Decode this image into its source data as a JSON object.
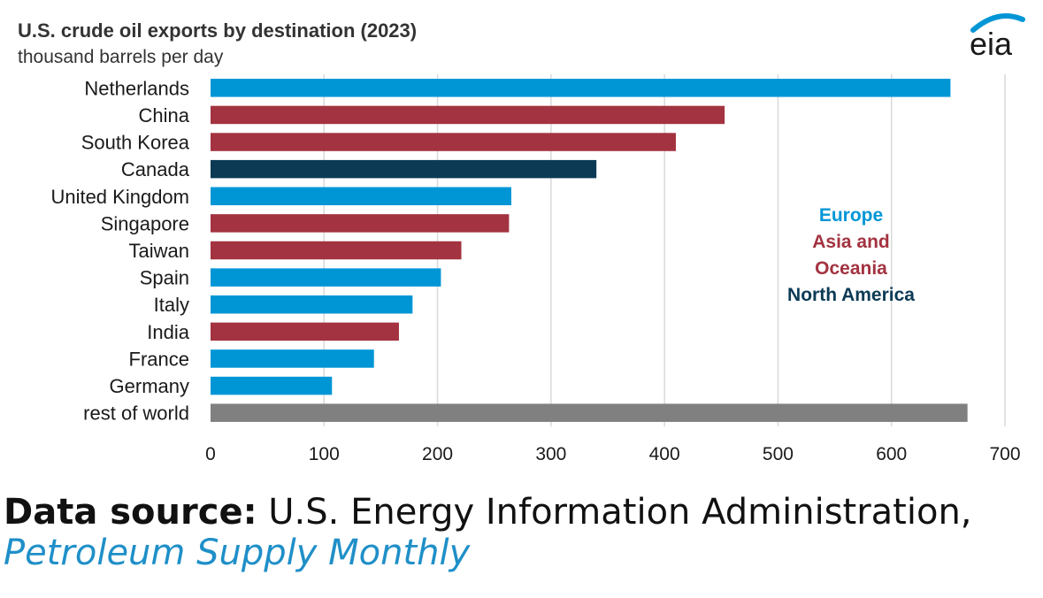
{
  "header": {
    "title": "U.S. crude oil exports by destination (2023)",
    "subtitle": "thousand barrels per day",
    "logo_text": "eia"
  },
  "colors": {
    "europe": "#0096d6",
    "asia_oceania": "#a33340",
    "north_america": "#0c3a55",
    "rest": "#808080",
    "grid": "#d9d9d9",
    "text": "#1a1a1a"
  },
  "legend": [
    {
      "label": "Europe",
      "color": "#0096d6"
    },
    {
      "label": "Asia and",
      "color": "#a33340"
    },
    {
      "label": "Oceania",
      "color": "#a33340"
    },
    {
      "label": "North America",
      "color": "#0c3a55"
    }
  ],
  "chart_data": {
    "type": "bar",
    "orientation": "horizontal",
    "title": "U.S. crude oil exports by destination (2023)",
    "subtitle": "thousand barrels per day",
    "xlim": [
      0,
      700
    ],
    "xticks": [
      0,
      100,
      200,
      300,
      400,
      500,
      600,
      700
    ],
    "grid": "vertical",
    "legend_placement": "right, inside plot",
    "categories": [
      "Netherlands",
      "China",
      "South Korea",
      "Canada",
      "United Kingdom",
      "Singapore",
      "Taiwan",
      "Spain",
      "Italy",
      "India",
      "France",
      "Germany",
      "rest of world"
    ],
    "values": [
      652,
      453,
      410,
      340,
      265,
      263,
      221,
      203,
      178,
      166,
      144,
      107,
      667
    ],
    "regions": [
      "europe",
      "asia_oceania",
      "asia_oceania",
      "north_america",
      "europe",
      "asia_oceania",
      "asia_oceania",
      "europe",
      "europe",
      "asia_oceania",
      "europe",
      "europe",
      "rest"
    ]
  },
  "footer": {
    "source_label": "Data source:",
    "source_text": " U.S. Energy Information Administration, ",
    "source_publication": "Petroleum Supply Monthly"
  }
}
